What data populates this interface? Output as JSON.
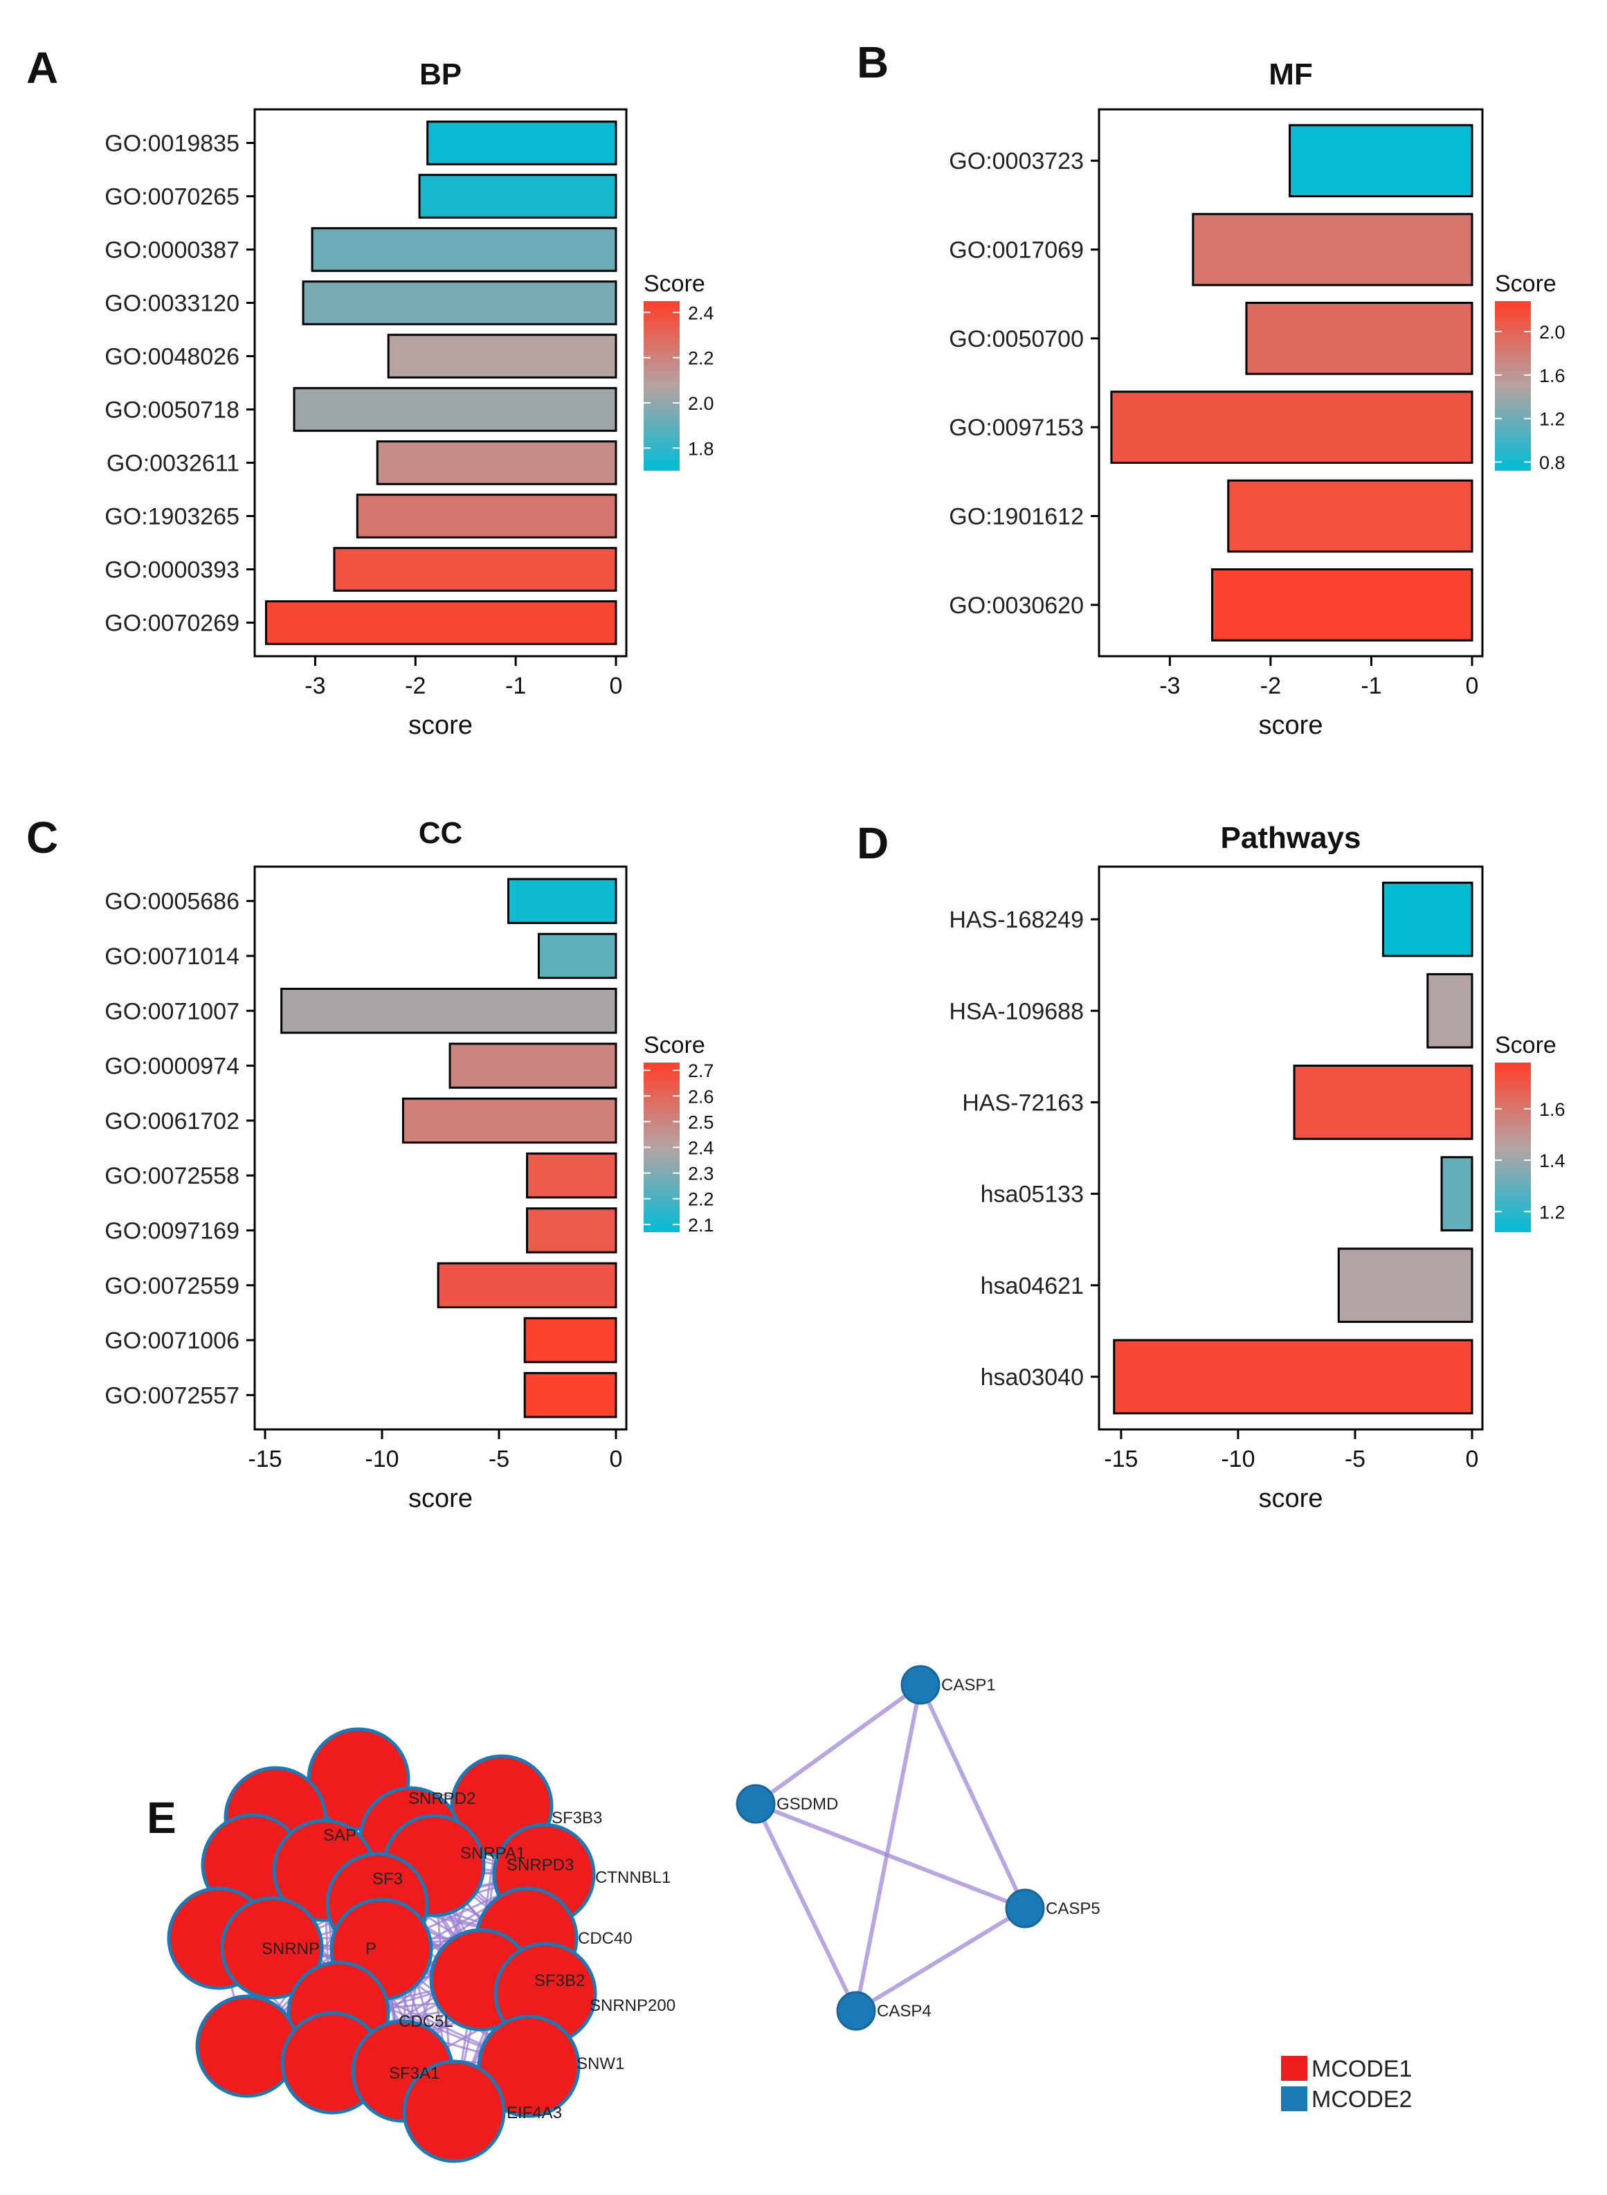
{
  "colors": {
    "low": "#00bcd6",
    "mid": "#b4a3a3",
    "high": "#ff3f2a",
    "module1": "#ee1c1c",
    "module2": "#1b79b6",
    "edge": "#9b7fd6",
    "axis": "#000000"
  },
  "chart_data": [
    {
      "panel": "A",
      "type": "bar",
      "orientation": "horizontal",
      "title": "BP",
      "xlabel": "score",
      "ylabel": "",
      "xlim": [
        -3.5,
        0
      ],
      "xticks": [
        -3,
        -2,
        -1,
        0
      ],
      "categories": [
        "GO:0019835",
        "GO:0070265",
        "GO:0000387",
        "GO:0033120",
        "GO:0048026",
        "GO:0050718",
        "GO:0032611",
        "GO:1903265",
        "GO:0000393",
        "GO:0070269"
      ],
      "values": [
        -1.88,
        -1.96,
        -3.03,
        -3.12,
        -2.27,
        -3.21,
        -2.38,
        -2.58,
        -2.81,
        -3.49
      ],
      "color_values": [
        1.72,
        1.75,
        1.92,
        1.95,
        2.08,
        2.03,
        2.16,
        2.24,
        2.38,
        2.42
      ],
      "legend": {
        "title": "Score",
        "ticks": [
          1.8,
          2.0,
          2.2,
          2.4
        ],
        "tick_labels": [
          "1.8",
          "2.0",
          "2.2",
          "2.4"
        ],
        "range": [
          1.7,
          2.45
        ]
      }
    },
    {
      "panel": "B",
      "type": "bar",
      "orientation": "horizontal",
      "title": "MF",
      "xlabel": "score",
      "ylabel": "",
      "xlim": [
        -3.6,
        0
      ],
      "xticks": [
        -3,
        -2,
        -1,
        0
      ],
      "categories": [
        "GO:0003723",
        "GO:0017069",
        "GO:0050700",
        "GO:0097153",
        "GO:1901612",
        "GO:0030620"
      ],
      "values": [
        -1.81,
        -2.77,
        -2.24,
        -3.58,
        -2.42,
        -2.58
      ],
      "color_values": [
        0.75,
        1.85,
        1.95,
        2.12,
        2.15,
        2.25
      ],
      "legend": {
        "title": "Score",
        "ticks": [
          0.8,
          1.2,
          1.6,
          2.0
        ],
        "tick_labels": [
          "0.8",
          "1.2",
          "1.6",
          "2.0"
        ],
        "range": [
          0.72,
          2.28
        ]
      }
    },
    {
      "panel": "C",
      "type": "bar",
      "orientation": "horizontal",
      "title": "CC",
      "xlabel": "score",
      "ylabel": "",
      "xlim": [
        -15,
        0
      ],
      "xticks": [
        -15,
        -10,
        -5,
        0
      ],
      "categories": [
        "GO:0005686",
        "GO:0071014",
        "GO:0071007",
        "GO:0000974",
        "GO:0061702",
        "GO:0072558",
        "GO:0097169",
        "GO:0072559",
        "GO:0071006",
        "GO:0072557"
      ],
      "values": [
        -4.6,
        -3.3,
        -14.3,
        -7.1,
        -9.1,
        -3.8,
        -3.8,
        -7.6,
        -3.9,
        -3.9
      ],
      "color_values": [
        2.1,
        2.24,
        2.38,
        2.5,
        2.52,
        2.64,
        2.64,
        2.66,
        2.72,
        2.72
      ],
      "legend": {
        "title": "Score",
        "ticks": [
          2.1,
          2.2,
          2.3,
          2.4,
          2.5,
          2.6,
          2.7
        ],
        "tick_labels": [
          "2.1",
          "2.2",
          "2.3",
          "2.4",
          "2.5",
          "2.6",
          "2.7"
        ],
        "range": [
          2.07,
          2.73
        ]
      }
    },
    {
      "panel": "D",
      "type": "bar",
      "orientation": "horizontal",
      "title": "Pathways",
      "xlabel": "score",
      "ylabel": "",
      "xlim": [
        -15.5,
        0
      ],
      "xticks": [
        -15,
        -10,
        -5,
        0
      ],
      "categories": [
        "HAS-168249",
        "HSA-109688",
        "HAS-72163",
        "hsa05133",
        "hsa04621",
        "hsa03040"
      ],
      "values": [
        -3.8,
        -1.9,
        -7.6,
        -1.3,
        -5.7,
        -15.3
      ],
      "color_values": [
        1.13,
        1.45,
        1.72,
        1.3,
        1.45,
        1.75
      ],
      "legend": {
        "title": "Score",
        "ticks": [
          1.2,
          1.4,
          1.6
        ],
        "tick_labels": [
          "1.2",
          "1.4",
          "1.6"
        ],
        "range": [
          1.12,
          1.78
        ]
      }
    }
  ],
  "network": {
    "panel": "E",
    "module1_nodes": [
      "SNRPD2",
      "SF3B3",
      "SAP",
      "SNRPA1",
      "SF3",
      "SNRPD3",
      "CTNNBL1",
      "SNRNP",
      "P",
      "CDC40",
      "SF3B2",
      "CDC5L",
      "SNRNP200",
      "SF3A1",
      "SNW1",
      "EIF4A3"
    ],
    "module2_nodes": [
      "CASP1",
      "GSDMD",
      "CASP5",
      "CASP4"
    ],
    "module2_edges": [
      [
        "CASP1",
        "GSDMD"
      ],
      [
        "CASP1",
        "CASP5"
      ],
      [
        "CASP1",
        "CASP4"
      ],
      [
        "GSDMD",
        "CASP5"
      ],
      [
        "GSDMD",
        "CASP4"
      ],
      [
        "CASP5",
        "CASP4"
      ]
    ],
    "legend": [
      {
        "label": "MCODE1",
        "color": "#ee1c1c"
      },
      {
        "label": "MCODE2",
        "color": "#1b79b6"
      }
    ]
  }
}
